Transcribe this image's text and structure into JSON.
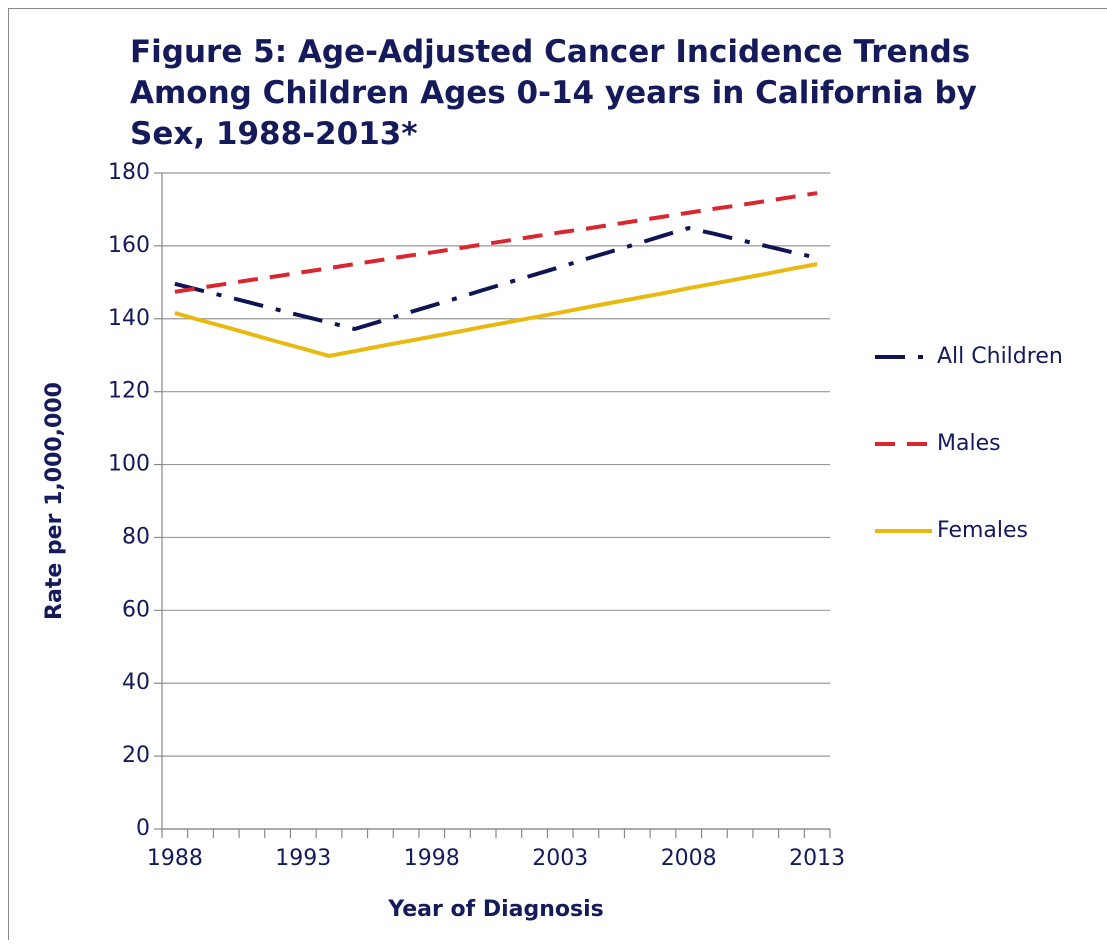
{
  "chart_data": {
    "type": "line",
    "title": [
      "Figure 5: Age-Adjusted Cancer Incidence Trends",
      "Among Children Ages 0-14 years in California by",
      "Sex, 1988-2013*"
    ],
    "xlabel": "Year of Diagnosis",
    "ylabel": "Rate per 1,000,000",
    "categories": [
      "1988",
      null,
      null,
      null,
      null,
      "1993",
      null,
      null,
      null,
      null,
      "1998",
      null,
      null,
      null,
      null,
      "2003",
      null,
      null,
      null,
      null,
      "2008",
      null,
      null,
      null,
      null,
      "2013"
    ],
    "ylim": [
      0,
      180
    ],
    "yticks": [
      0,
      20,
      40,
      60,
      80,
      100,
      120,
      140,
      160,
      180
    ],
    "grid": true,
    "legend": "right",
    "series": [
      {
        "name": "All Children",
        "color": "#0f1452",
        "style": "dash-dot",
        "values": [
          149.6,
          147.8,
          146.1,
          144.3,
          142.5,
          140.7,
          139.0,
          137.2,
          139.3,
          141.5,
          143.6,
          145.7,
          147.9,
          150.0,
          152.1,
          154.2,
          156.4,
          158.5,
          160.6,
          162.8,
          164.9,
          163.3,
          161.6,
          160.0,
          158.3,
          156.7
        ]
      },
      {
        "name": "Males",
        "color": "#d92630",
        "style": "dash",
        "values": [
          147.4,
          148.5,
          149.6,
          150.7,
          151.7,
          152.8,
          153.9,
          155.0,
          156.1,
          157.2,
          158.2,
          159.3,
          160.4,
          161.5,
          162.6,
          163.7,
          164.7,
          165.8,
          166.9,
          168.0,
          169.1,
          170.2,
          171.2,
          172.3,
          173.4,
          174.5
        ]
      },
      {
        "name": "Females",
        "color": "#e8b90f",
        "style": "solid",
        "values": [
          141.6,
          139.6,
          137.7,
          135.7,
          133.7,
          131.8,
          129.8,
          131.1,
          132.5,
          133.8,
          135.1,
          136.4,
          137.8,
          139.1,
          140.4,
          141.7,
          143.1,
          144.4,
          145.7,
          147.0,
          148.4,
          149.7,
          151.0,
          152.3,
          153.7,
          155.0
        ]
      }
    ]
  }
}
